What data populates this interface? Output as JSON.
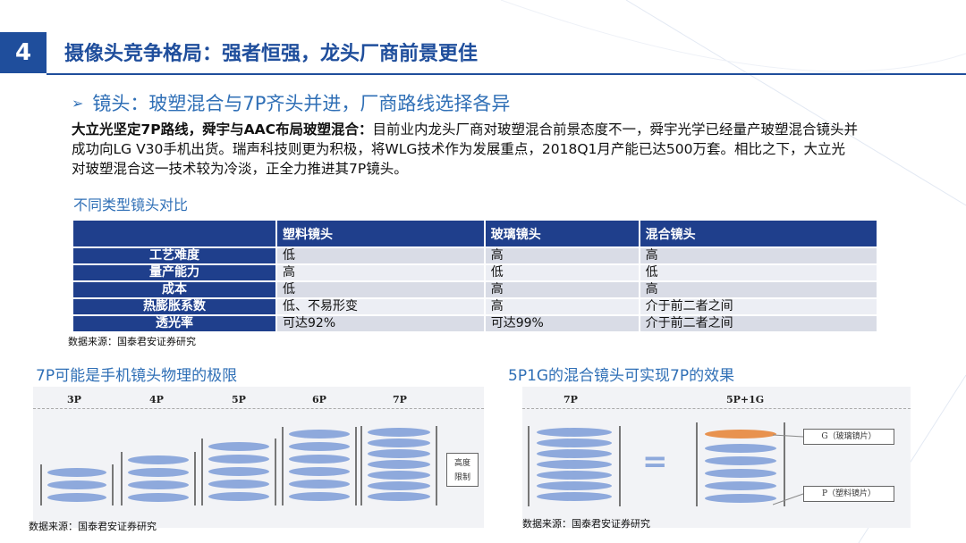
{
  "slide": {
    "number": "4",
    "title": "摄像头竞争格局：强者恒强，龙头厂商前景更佳",
    "subheading": "镜头：玻塑混合与7P齐头并进，厂商路线选择各异",
    "subheading_bullet": "➢",
    "body_bold": "大立光坚定7P路线，舜宇与AAC布局玻塑混合：",
    "body_text": "目前业内龙头厂商对玻塑混合前景态度不一，舜宇光学已经量产玻塑混合镜头并成功向LG V30手机出货。瑞声科技则更为积极，将WLG技术作为发展重点，2018Q1月产能已达500万套。相比之下，大立光对玻塑混合这一技术较为冷淡，正全力推进其7P镜头。"
  },
  "table": {
    "caption": "不同类型镜头对比",
    "headers": [
      "",
      "塑料镜头",
      "玻璃镜头",
      "混合镜头"
    ],
    "rows": [
      [
        "工艺难度",
        "低",
        "高",
        "高"
      ],
      [
        "量产能力",
        "高",
        "低",
        "低"
      ],
      [
        "成本",
        "低",
        "高",
        "高"
      ],
      [
        "热膨胀系数",
        "低、不易形变",
        "高",
        "介于前二者之间"
      ],
      [
        "透光率",
        "可达92%",
        "可达99%",
        "介于前二者之间"
      ]
    ],
    "source": "数据来源：国泰君安证券研究"
  },
  "figure_left": {
    "title": "7P可能是手机镜头物理的极限",
    "labels": [
      "3P",
      "4P",
      "5P",
      "6P",
      "7P"
    ],
    "note": [
      "高度",
      "限制"
    ],
    "source": "数据来源：国泰君安证券研究"
  },
  "figure_right": {
    "title": "5P1G的混合镜头可实现7P的效果",
    "labels": [
      "7P",
      "5P+1G"
    ],
    "equals": "=",
    "glass_note": "G（玻璃镜片）",
    "plastic_note": "P（塑料镜片）",
    "source": "数据来源：国泰君安证券研究"
  },
  "colors": {
    "brand": "#1f4e9c",
    "accent": "#2f6fb6",
    "table_header": "#1f3f8c",
    "lens_plastic": "#8ea9dc",
    "lens_glass": "#e8924f"
  }
}
